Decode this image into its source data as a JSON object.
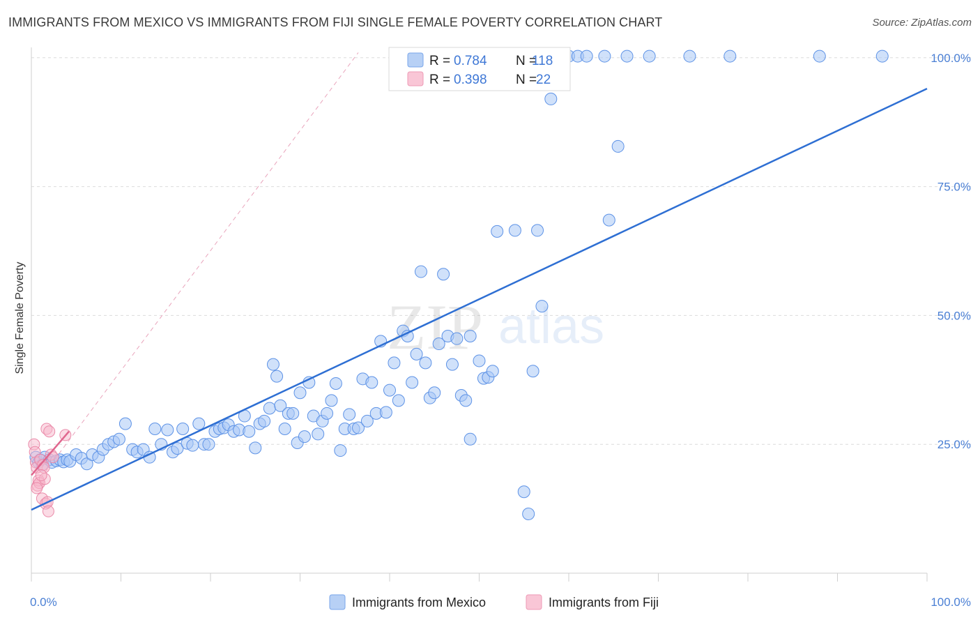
{
  "title": "IMMIGRANTS FROM MEXICO VS IMMIGRANTS FROM FIJI SINGLE FEMALE POVERTY CORRELATION CHART",
  "source": "Source: ZipAtlas.com",
  "watermark": {
    "zip": "ZIP",
    "atlas": "atlas"
  },
  "colors": {
    "mexico": "#4a86e8",
    "mexico_fill": "#aac8f5",
    "fiji": "#e8759a",
    "fiji_fill": "#f7b8cc",
    "axis_text": "#4a7fd4"
  },
  "legend": {
    "r_label": "R =",
    "n_label": "N =",
    "mexico": {
      "r": "0.784",
      "n": "118"
    },
    "fiji": {
      "r": "0.398",
      "n": "22"
    }
  },
  "chart_data": {
    "type": "scatter",
    "title": "IMMIGRANTS FROM MEXICO VS IMMIGRANTS FROM FIJI SINGLE FEMALE POVERTY CORRELATION CHART",
    "xlabel": "",
    "ylabel": "Single Female Poverty",
    "xlim": [
      0,
      100
    ],
    "ylim": [
      0,
      102
    ],
    "x_tick_labels": [
      "0.0%",
      "100.0%"
    ],
    "y_ticks": [
      25,
      50,
      75,
      100
    ],
    "y_tick_labels": [
      "25.0%",
      "50.0%",
      "75.0%",
      "100.0%"
    ],
    "grid": true,
    "series": [
      {
        "name": "Immigrants from Mexico",
        "color": "#4a86e8",
        "points": [
          [
            0.5,
            22.5
          ],
          [
            0.8,
            21.5
          ],
          [
            1.0,
            22.0
          ],
          [
            1.2,
            21.0
          ],
          [
            1.5,
            22.5
          ],
          [
            2.0,
            22.0
          ],
          [
            2.3,
            21.5
          ],
          [
            2.8,
            21.8
          ],
          [
            3.2,
            22.0
          ],
          [
            3.6,
            21.6
          ],
          [
            4.0,
            22.0
          ],
          [
            4.3,
            21.7
          ],
          [
            5.0,
            23.0
          ],
          [
            5.6,
            22.3
          ],
          [
            6.2,
            21.2
          ],
          [
            6.8,
            23.0
          ],
          [
            7.5,
            22.5
          ],
          [
            8.0,
            24.0
          ],
          [
            8.6,
            25.0
          ],
          [
            9.2,
            25.5
          ],
          [
            9.8,
            26.0
          ],
          [
            10.5,
            29.0
          ],
          [
            11.3,
            24.0
          ],
          [
            11.8,
            23.5
          ],
          [
            12.5,
            24.0
          ],
          [
            13.2,
            22.5
          ],
          [
            13.8,
            28.0
          ],
          [
            14.5,
            25.0
          ],
          [
            15.2,
            27.8
          ],
          [
            15.8,
            23.5
          ],
          [
            16.3,
            24.2
          ],
          [
            16.9,
            28.0
          ],
          [
            17.4,
            25.2
          ],
          [
            18.0,
            24.8
          ],
          [
            18.7,
            29.0
          ],
          [
            19.3,
            25.0
          ],
          [
            19.8,
            25.0
          ],
          [
            20.5,
            27.5
          ],
          [
            21.0,
            28.0
          ],
          [
            21.5,
            28.2
          ],
          [
            22.0,
            28.8
          ],
          [
            22.6,
            27.5
          ],
          [
            23.2,
            27.8
          ],
          [
            23.8,
            30.5
          ],
          [
            24.3,
            27.5
          ],
          [
            25.0,
            24.3
          ],
          [
            25.5,
            29.0
          ],
          [
            26.0,
            29.5
          ],
          [
            26.6,
            32.0
          ],
          [
            27.0,
            40.5
          ],
          [
            27.4,
            38.2
          ],
          [
            27.8,
            32.5
          ],
          [
            28.3,
            28.0
          ],
          [
            28.7,
            31.0
          ],
          [
            29.2,
            31.0
          ],
          [
            29.7,
            25.3
          ],
          [
            30.0,
            35.0
          ],
          [
            30.5,
            26.5
          ],
          [
            31.0,
            37.0
          ],
          [
            31.5,
            30.5
          ],
          [
            32.0,
            27.0
          ],
          [
            32.5,
            29.5
          ],
          [
            33.0,
            31.0
          ],
          [
            33.5,
            33.5
          ],
          [
            34.0,
            36.8
          ],
          [
            34.5,
            23.8
          ],
          [
            35.0,
            28.0
          ],
          [
            35.5,
            30.8
          ],
          [
            36.0,
            28.0
          ],
          [
            36.5,
            28.2
          ],
          [
            37.0,
            37.7
          ],
          [
            37.5,
            29.5
          ],
          [
            38.0,
            37.0
          ],
          [
            38.5,
            31.0
          ],
          [
            39.0,
            45.0
          ],
          [
            39.6,
            31.2
          ],
          [
            40.0,
            35.5
          ],
          [
            40.5,
            40.8
          ],
          [
            41.0,
            33.5
          ],
          [
            41.5,
            47.0
          ],
          [
            42.0,
            46.0
          ],
          [
            42.5,
            37.0
          ],
          [
            43.0,
            42.5
          ],
          [
            43.5,
            58.5
          ],
          [
            44.0,
            40.8
          ],
          [
            44.5,
            34.0
          ],
          [
            45.0,
            35.0
          ],
          [
            45.5,
            44.5
          ],
          [
            46.0,
            58.0
          ],
          [
            46.5,
            46.0
          ],
          [
            47.0,
            40.5
          ],
          [
            47.5,
            45.5
          ],
          [
            48.0,
            34.5
          ],
          [
            48.5,
            33.5
          ],
          [
            49.0,
            46.0
          ],
          [
            50.0,
            41.2
          ],
          [
            50.5,
            37.8
          ],
          [
            51.0,
            38.0
          ],
          [
            51.5,
            39.2
          ],
          [
            52.0,
            66.3
          ],
          [
            54.0,
            66.5
          ],
          [
            55.0,
            15.8
          ],
          [
            55.5,
            11.5
          ],
          [
            56.0,
            39.2
          ],
          [
            56.5,
            66.5
          ],
          [
            57.0,
            51.8
          ],
          [
            58.0,
            92.0
          ],
          [
            60.0,
            100.3
          ],
          [
            61.0,
            100.3
          ],
          [
            62.0,
            100.3
          ],
          [
            64.0,
            100.3
          ],
          [
            64.5,
            68.5
          ],
          [
            65.5,
            82.8
          ],
          [
            66.5,
            100.3
          ],
          [
            69.0,
            100.3
          ],
          [
            73.5,
            100.3
          ],
          [
            78.0,
            100.3
          ],
          [
            88.0,
            100.3
          ],
          [
            95.0,
            100.3
          ],
          [
            49.0,
            26.0
          ]
        ]
      },
      {
        "name": "Immigrants from Fiji",
        "color": "#e8759a",
        "points": [
          [
            0.3,
            25.0
          ],
          [
            0.4,
            23.5
          ],
          [
            0.5,
            21.5
          ],
          [
            0.6,
            20.5
          ],
          [
            0.7,
            17.0
          ],
          [
            0.8,
            18.0
          ],
          [
            0.9,
            17.5
          ],
          [
            1.0,
            22.0
          ],
          [
            1.2,
            14.5
          ],
          [
            1.3,
            21.0
          ],
          [
            1.4,
            20.5
          ],
          [
            1.5,
            18.3
          ],
          [
            1.6,
            13.5
          ],
          [
            1.7,
            28.0
          ],
          [
            1.8,
            13.8
          ],
          [
            1.9,
            12.0
          ],
          [
            2.0,
            27.5
          ],
          [
            2.2,
            23.0
          ],
          [
            2.4,
            22.5
          ],
          [
            3.8,
            26.8
          ],
          [
            0.6,
            16.5
          ],
          [
            1.1,
            19.0
          ]
        ]
      }
    ],
    "trendlines": [
      {
        "series": "Immigrants from Mexico",
        "x": [
          0,
          100
        ],
        "y": [
          12.3,
          94.0
        ]
      },
      {
        "series": "Immigrants from Fiji",
        "x": [
          0,
          4.2
        ],
        "y": [
          19.0,
          27.5
        ]
      },
      {
        "series": "Immigrants from Fiji (extrapolated)",
        "x": [
          0,
          36.5
        ],
        "y": [
          16.0,
          101.0
        ]
      }
    ],
    "legend": {
      "entries": [
        "Immigrants from Mexico",
        "Immigrants from Fiji"
      ],
      "placement": "bottom-center"
    }
  }
}
